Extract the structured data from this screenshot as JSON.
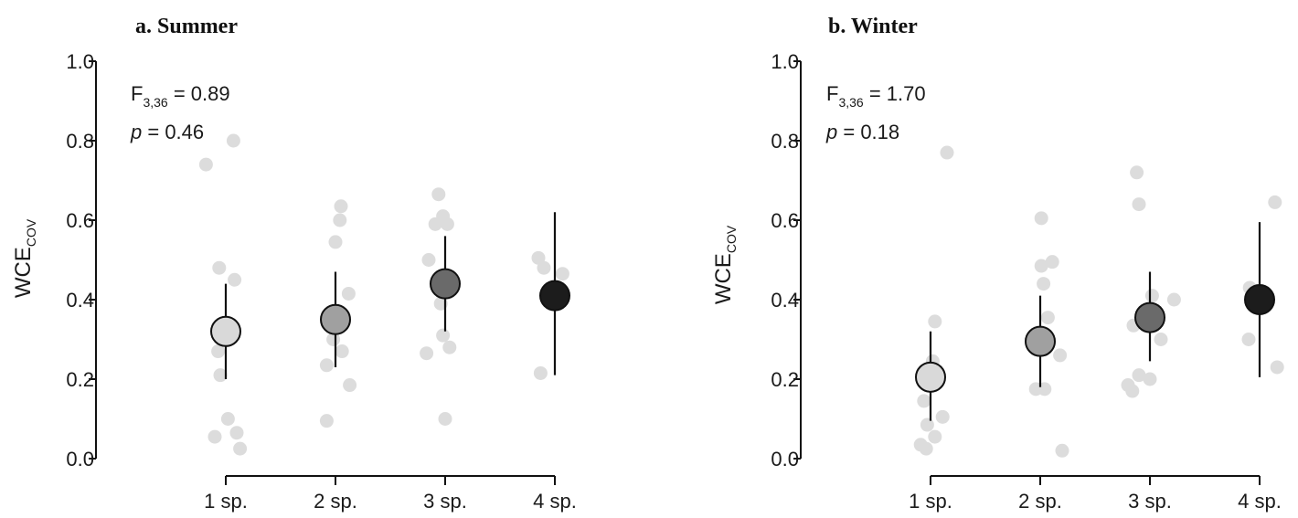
{
  "chart_data": [
    {
      "type": "scatter",
      "title": "a. Summer",
      "ylabel_main": "WCE",
      "ylabel_sub": "COV",
      "ylim": [
        0.0,
        1.0
      ],
      "yticks": [
        "0.0",
        "0.2",
        "0.4",
        "0.6",
        "0.8",
        "1.0"
      ],
      "categories": [
        "1 sp.",
        "2 sp.",
        "3 sp.",
        "4 sp."
      ],
      "stats": {
        "F_prefix": "F",
        "F_sub": "3,36",
        "F_rest": " = 0.89",
        "p_prefix": "p",
        "p_rest": " = 0.46"
      },
      "means": [
        {
          "category": "1 sp.",
          "mean": 0.32,
          "lower": 0.2,
          "upper": 0.44,
          "fill": "#d9d9d9"
        },
        {
          "category": "2 sp.",
          "mean": 0.35,
          "lower": 0.23,
          "upper": 0.47,
          "fill": "#a0a0a0"
        },
        {
          "category": "3 sp.",
          "mean": 0.44,
          "lower": 0.32,
          "upper": 0.56,
          "fill": "#6a6a6a"
        },
        {
          "category": "4 sp.",
          "mean": 0.41,
          "lower": 0.21,
          "upper": 0.62,
          "fill": "#1c1c1c"
        }
      ],
      "raw_points": [
        {
          "cat": 0,
          "dx": -0.18,
          "y": 0.74
        },
        {
          "cat": 0,
          "dx": 0.07,
          "y": 0.8
        },
        {
          "cat": 0,
          "dx": -0.06,
          "y": 0.48
        },
        {
          "cat": 0,
          "dx": 0.08,
          "y": 0.45
        },
        {
          "cat": 0,
          "dx": -0.07,
          "y": 0.27
        },
        {
          "cat": 0,
          "dx": -0.05,
          "y": 0.21
        },
        {
          "cat": 0,
          "dx": 0.02,
          "y": 0.1
        },
        {
          "cat": 0,
          "dx": 0.1,
          "y": 0.065
        },
        {
          "cat": 0,
          "dx": -0.1,
          "y": 0.055
        },
        {
          "cat": 0,
          "dx": 0.13,
          "y": 0.025
        },
        {
          "cat": 1,
          "dx": 0.05,
          "y": 0.635
        },
        {
          "cat": 1,
          "dx": 0.04,
          "y": 0.6
        },
        {
          "cat": 1,
          "dx": 0.0,
          "y": 0.545
        },
        {
          "cat": 1,
          "dx": 0.12,
          "y": 0.415
        },
        {
          "cat": 1,
          "dx": -0.02,
          "y": 0.3
        },
        {
          "cat": 1,
          "dx": 0.06,
          "y": 0.27
        },
        {
          "cat": 1,
          "dx": -0.08,
          "y": 0.235
        },
        {
          "cat": 1,
          "dx": 0.13,
          "y": 0.185
        },
        {
          "cat": 1,
          "dx": -0.08,
          "y": 0.095
        },
        {
          "cat": 2,
          "dx": -0.06,
          "y": 0.665
        },
        {
          "cat": 2,
          "dx": -0.02,
          "y": 0.61
        },
        {
          "cat": 2,
          "dx": -0.09,
          "y": 0.59
        },
        {
          "cat": 2,
          "dx": 0.02,
          "y": 0.59
        },
        {
          "cat": 2,
          "dx": -0.15,
          "y": 0.5
        },
        {
          "cat": 2,
          "dx": -0.04,
          "y": 0.39
        },
        {
          "cat": 2,
          "dx": -0.02,
          "y": 0.31
        },
        {
          "cat": 2,
          "dx": 0.04,
          "y": 0.28
        },
        {
          "cat": 2,
          "dx": -0.17,
          "y": 0.265
        },
        {
          "cat": 2,
          "dx": 0.0,
          "y": 0.1
        },
        {
          "cat": 3,
          "dx": -0.15,
          "y": 0.505
        },
        {
          "cat": 3,
          "dx": -0.1,
          "y": 0.48
        },
        {
          "cat": 3,
          "dx": 0.07,
          "y": 0.465
        },
        {
          "cat": 3,
          "dx": -0.13,
          "y": 0.215
        }
      ]
    },
    {
      "type": "scatter",
      "title": "b. Winter",
      "ylabel_main": "WCE",
      "ylabel_sub": "COV",
      "ylim": [
        0.0,
        1.0
      ],
      "yticks": [
        "0.0",
        "0.2",
        "0.4",
        "0.6",
        "0.8",
        "1.0"
      ],
      "categories": [
        "1 sp.",
        "2 sp.",
        "3 sp.",
        "4 sp."
      ],
      "stats": {
        "F_prefix": "F",
        "F_sub": "3,36",
        "F_rest": " = 1.70",
        "p_prefix": "p",
        "p_rest": " = 0.18"
      },
      "means": [
        {
          "category": "1 sp.",
          "mean": 0.205,
          "lower": 0.095,
          "upper": 0.32,
          "fill": "#d9d9d9"
        },
        {
          "category": "2 sp.",
          "mean": 0.295,
          "lower": 0.18,
          "upper": 0.41,
          "fill": "#a0a0a0"
        },
        {
          "category": "3 sp.",
          "mean": 0.355,
          "lower": 0.245,
          "upper": 0.47,
          "fill": "#6a6a6a"
        },
        {
          "category": "4 sp.",
          "mean": 0.4,
          "lower": 0.205,
          "upper": 0.595,
          "fill": "#1c1c1c"
        }
      ],
      "raw_points": [
        {
          "cat": 0,
          "dx": 0.15,
          "y": 0.77
        },
        {
          "cat": 0,
          "dx": 0.04,
          "y": 0.345
        },
        {
          "cat": 0,
          "dx": 0.02,
          "y": 0.245
        },
        {
          "cat": 0,
          "dx": -0.02,
          "y": 0.185
        },
        {
          "cat": 0,
          "dx": -0.06,
          "y": 0.145
        },
        {
          "cat": 0,
          "dx": 0.11,
          "y": 0.105
        },
        {
          "cat": 0,
          "dx": -0.03,
          "y": 0.085
        },
        {
          "cat": 0,
          "dx": 0.04,
          "y": 0.055
        },
        {
          "cat": 0,
          "dx": -0.09,
          "y": 0.035
        },
        {
          "cat": 0,
          "dx": -0.04,
          "y": 0.025
        },
        {
          "cat": 1,
          "dx": 0.01,
          "y": 0.605
        },
        {
          "cat": 1,
          "dx": 0.11,
          "y": 0.495
        },
        {
          "cat": 1,
          "dx": 0.01,
          "y": 0.485
        },
        {
          "cat": 1,
          "dx": 0.03,
          "y": 0.44
        },
        {
          "cat": 1,
          "dx": 0.07,
          "y": 0.355
        },
        {
          "cat": 1,
          "dx": 0.18,
          "y": 0.26
        },
        {
          "cat": 1,
          "dx": -0.04,
          "y": 0.175
        },
        {
          "cat": 1,
          "dx": 0.04,
          "y": 0.175
        },
        {
          "cat": 1,
          "dx": 0.2,
          "y": 0.02
        },
        {
          "cat": 2,
          "dx": -0.12,
          "y": 0.72
        },
        {
          "cat": 2,
          "dx": -0.1,
          "y": 0.64
        },
        {
          "cat": 2,
          "dx": 0.02,
          "y": 0.41
        },
        {
          "cat": 2,
          "dx": 0.22,
          "y": 0.4
        },
        {
          "cat": 2,
          "dx": -0.06,
          "y": 0.36
        },
        {
          "cat": 2,
          "dx": -0.15,
          "y": 0.335
        },
        {
          "cat": 2,
          "dx": 0.1,
          "y": 0.3
        },
        {
          "cat": 2,
          "dx": -0.1,
          "y": 0.21
        },
        {
          "cat": 2,
          "dx": 0.0,
          "y": 0.2
        },
        {
          "cat": 2,
          "dx": -0.2,
          "y": 0.185
        },
        {
          "cat": 2,
          "dx": -0.16,
          "y": 0.17
        },
        {
          "cat": 3,
          "dx": 0.14,
          "y": 0.645
        },
        {
          "cat": 3,
          "dx": -0.09,
          "y": 0.43
        },
        {
          "cat": 3,
          "dx": -0.1,
          "y": 0.3
        },
        {
          "cat": 3,
          "dx": 0.16,
          "y": 0.23
        }
      ]
    }
  ]
}
